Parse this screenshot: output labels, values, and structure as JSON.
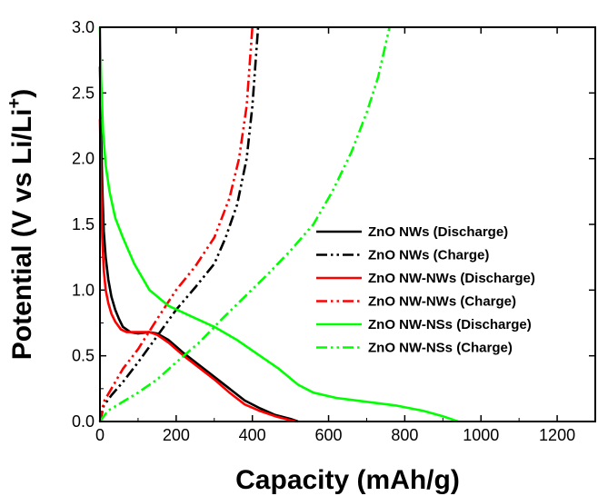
{
  "chart_data": {
    "type": "line",
    "title": "",
    "xlabel": "Capacity (mAh/g)",
    "ylabel_main": "Potential (V vs Li/Li",
    "ylabel_sup": "+",
    "ylabel_close": ")",
    "xlim": [
      0,
      1300
    ],
    "ylim": [
      0,
      3.0
    ],
    "x_ticks": [
      0,
      200,
      400,
      600,
      800,
      1000,
      1200
    ],
    "y_ticks": [
      0.0,
      0.5,
      1.0,
      1.5,
      2.0,
      2.5,
      3.0
    ],
    "grid": false,
    "legend_position": "right",
    "series": [
      {
        "name": "ZnO NWs (Discharge)",
        "color": "#000000",
        "dash": "solid",
        "points": [
          [
            0,
            2.7
          ],
          [
            3,
            2.2
          ],
          [
            6,
            1.8
          ],
          [
            10,
            1.45
          ],
          [
            15,
            1.25
          ],
          [
            22,
            1.08
          ],
          [
            30,
            0.95
          ],
          [
            40,
            0.85
          ],
          [
            50,
            0.78
          ],
          [
            60,
            0.72
          ],
          [
            80,
            0.68
          ],
          [
            100,
            0.67
          ],
          [
            130,
            0.68
          ],
          [
            150,
            0.67
          ],
          [
            180,
            0.62
          ],
          [
            220,
            0.52
          ],
          [
            260,
            0.43
          ],
          [
            300,
            0.34
          ],
          [
            340,
            0.25
          ],
          [
            380,
            0.16
          ],
          [
            420,
            0.1
          ],
          [
            460,
            0.05
          ],
          [
            500,
            0.02
          ],
          [
            520,
            0.0
          ]
        ]
      },
      {
        "name": "ZnO NWs (Charge)",
        "color": "#000000",
        "dash": "dashdotdot",
        "points": [
          [
            0,
            0.0
          ],
          [
            10,
            0.12
          ],
          [
            30,
            0.2
          ],
          [
            60,
            0.3
          ],
          [
            100,
            0.45
          ],
          [
            150,
            0.65
          ],
          [
            200,
            0.85
          ],
          [
            250,
            1.02
          ],
          [
            300,
            1.2
          ],
          [
            330,
            1.4
          ],
          [
            360,
            1.65
          ],
          [
            385,
            2.0
          ],
          [
            400,
            2.4
          ],
          [
            410,
            2.8
          ],
          [
            415,
            3.0
          ]
        ]
      },
      {
        "name": "ZnO NW-NWs (Discharge)",
        "color": "#ff0000",
        "dash": "solid",
        "points": [
          [
            0,
            2.3
          ],
          [
            3,
            1.8
          ],
          [
            6,
            1.4
          ],
          [
            10,
            1.15
          ],
          [
            15,
            1.0
          ],
          [
            22,
            0.9
          ],
          [
            30,
            0.82
          ],
          [
            40,
            0.76
          ],
          [
            55,
            0.7
          ],
          [
            70,
            0.68
          ],
          [
            100,
            0.68
          ],
          [
            130,
            0.68
          ],
          [
            150,
            0.66
          ],
          [
            180,
            0.6
          ],
          [
            220,
            0.5
          ],
          [
            260,
            0.41
          ],
          [
            300,
            0.32
          ],
          [
            340,
            0.22
          ],
          [
            380,
            0.13
          ],
          [
            420,
            0.08
          ],
          [
            460,
            0.04
          ],
          [
            500,
            0.01
          ],
          [
            515,
            0.0
          ]
        ]
      },
      {
        "name": "ZnO NW-NWs (Charge)",
        "color": "#ff0000",
        "dash": "dashdotdot",
        "points": [
          [
            0,
            0.0
          ],
          [
            10,
            0.15
          ],
          [
            30,
            0.25
          ],
          [
            60,
            0.4
          ],
          [
            100,
            0.55
          ],
          [
            150,
            0.78
          ],
          [
            200,
            1.0
          ],
          [
            250,
            1.18
          ],
          [
            300,
            1.4
          ],
          [
            340,
            1.7
          ],
          [
            365,
            2.0
          ],
          [
            385,
            2.4
          ],
          [
            395,
            2.8
          ],
          [
            400,
            3.0
          ]
        ]
      },
      {
        "name": "ZnO NW-NSs (Discharge)",
        "color": "#00ff00",
        "dash": "solid",
        "points": [
          [
            0,
            3.0
          ],
          [
            3,
            2.6
          ],
          [
            8,
            2.2
          ],
          [
            15,
            1.95
          ],
          [
            25,
            1.75
          ],
          [
            40,
            1.55
          ],
          [
            60,
            1.4
          ],
          [
            90,
            1.2
          ],
          [
            130,
            1.0
          ],
          [
            180,
            0.88
          ],
          [
            240,
            0.8
          ],
          [
            300,
            0.72
          ],
          [
            360,
            0.62
          ],
          [
            420,
            0.5
          ],
          [
            470,
            0.4
          ],
          [
            520,
            0.28
          ],
          [
            560,
            0.22
          ],
          [
            620,
            0.18
          ],
          [
            700,
            0.15
          ],
          [
            780,
            0.12
          ],
          [
            850,
            0.08
          ],
          [
            900,
            0.04
          ],
          [
            940,
            0.0
          ]
        ]
      },
      {
        "name": "ZnO NW-NSs (Charge)",
        "color": "#00ff00",
        "dash": "dashdotdot",
        "points": [
          [
            0,
            0.0
          ],
          [
            20,
            0.08
          ],
          [
            60,
            0.15
          ],
          [
            100,
            0.22
          ],
          [
            150,
            0.32
          ],
          [
            200,
            0.45
          ],
          [
            260,
            0.6
          ],
          [
            320,
            0.78
          ],
          [
            380,
            0.95
          ],
          [
            440,
            1.12
          ],
          [
            500,
            1.3
          ],
          [
            560,
            1.5
          ],
          [
            610,
            1.75
          ],
          [
            660,
            2.05
          ],
          [
            700,
            2.35
          ],
          [
            730,
            2.62
          ],
          [
            760,
            3.0
          ]
        ]
      }
    ]
  }
}
